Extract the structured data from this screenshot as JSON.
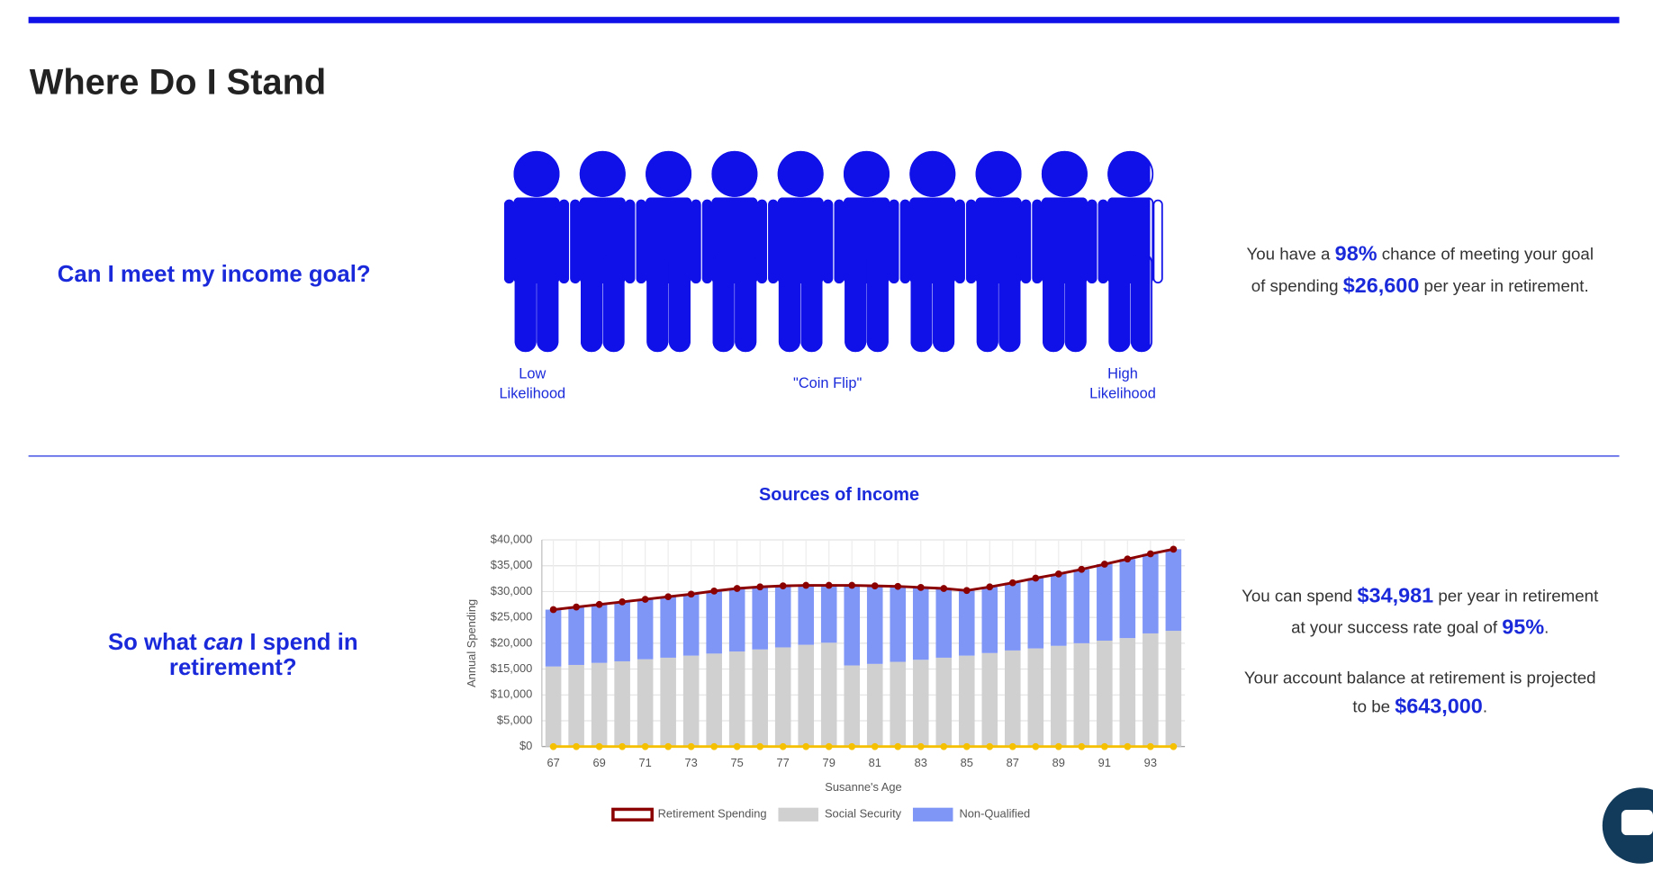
{
  "header": {
    "title": "Where Do I Stand"
  },
  "goal": {
    "question": [
      [
        "Can I meet my income goal?"
      ]
    ],
    "chance": 98,
    "scale_labels": [
      [
        "Low",
        "Likelihood"
      ],
      [
        "\"Coin Flip\""
      ],
      [
        "High",
        "Likelihood"
      ]
    ],
    "summary": [
      [
        "You have a ",
        "98%",
        " chance of meeting your goal"
      ],
      [
        "of spending ",
        "$26,600",
        " per year in retirement."
      ]
    ]
  },
  "spend": {
    "question": [
      [
        "So what ",
        "can",
        " I spend in"
      ],
      [
        "retirement?"
      ]
    ],
    "summary": [
      [
        "You can spend ",
        "$34,981",
        " per year in retirement"
      ],
      [
        "at your success rate goal of ",
        "95%",
        "."
      ]
    ],
    "balance": [
      [
        "Your account balance at retirement is projected"
      ],
      [
        "to be ",
        "$643,000",
        "."
      ]
    ]
  },
  "chart_data": {
    "type": "bar",
    "stacked": true,
    "title": "Sources of Income",
    "xlabel": "Susanne's Age",
    "ylabel": "Annual Spending",
    "categories": [
      "67",
      null,
      "69",
      null,
      "71",
      null,
      "73",
      null,
      "75",
      null,
      "77",
      null,
      "79",
      null,
      "81",
      null,
      "83",
      null,
      "85",
      null,
      "87",
      null,
      "89",
      null,
      "91",
      null,
      "93",
      null
    ],
    "series": [
      {
        "name": "Retirement Spending",
        "type": "line",
        "color": "#8b0000",
        "values": [
          26500,
          27000,
          27500,
          28000,
          28500,
          29000,
          29500,
          30100,
          30600,
          30900,
          31100,
          31200,
          31200,
          31200,
          31100,
          31000,
          30800,
          30600,
          30200,
          30900,
          31700,
          32600,
          33400,
          34300,
          35300,
          36300,
          37300,
          38200
        ]
      },
      {
        "name": "Social Security",
        "type": "bar",
        "color": "#d0d0d0",
        "values": [
          15500,
          15800,
          16200,
          16500,
          16900,
          17200,
          17600,
          18000,
          18400,
          18800,
          19200,
          19700,
          20100,
          15700,
          16000,
          16400,
          16800,
          17200,
          17600,
          18100,
          18600,
          19000,
          19500,
          20000,
          20500,
          21000,
          21900,
          22400
        ]
      },
      {
        "name": "Non-Qualified",
        "type": "bar",
        "color": "#8096f7",
        "values": [
          11000,
          11200,
          11300,
          11500,
          11600,
          11800,
          11900,
          12100,
          12200,
          12100,
          11900,
          11500,
          11100,
          15500,
          15100,
          14600,
          14000,
          13400,
          12600,
          12800,
          13100,
          13600,
          13900,
          14300,
          14800,
          15300,
          15400,
          15800
        ]
      },
      {
        "type": "line",
        "color": "#f5c000",
        "values": [
          0,
          0,
          0,
          0,
          0,
          0,
          0,
          0,
          0,
          0,
          0,
          0,
          0,
          0,
          0,
          0,
          0,
          0,
          0,
          0,
          0,
          0,
          0,
          0,
          0,
          0,
          0,
          0
        ]
      }
    ],
    "ylim": [
      0,
      40000
    ],
    "yticks": [
      {
        "value": 0,
        "label": "$0"
      },
      {
        "value": 5000,
        "label": "$5,000"
      },
      {
        "value": 10000,
        "label": "$10,000"
      },
      {
        "value": 15000,
        "label": "$15,000"
      },
      {
        "value": 20000,
        "label": "$20,000"
      },
      {
        "value": 25000,
        "label": "$25,000"
      },
      {
        "value": 30000,
        "label": "$30,000"
      },
      {
        "value": 35000,
        "label": "$35,000"
      },
      {
        "value": 40000,
        "label": "$40,000"
      }
    ],
    "grid": true
  }
}
